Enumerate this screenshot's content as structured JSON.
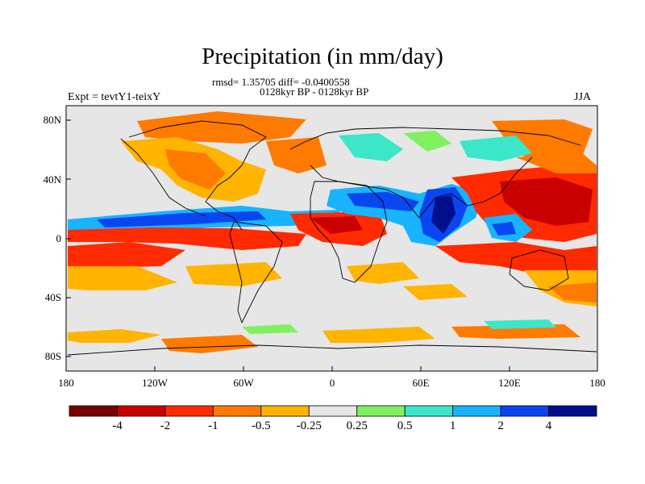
{
  "title": "Precipitation (in mm/day)",
  "stats": "rmsd= 1.35705 diff= -0.0400558",
  "period": "0128kyr BP - 0128kyr BP",
  "experiment": "Expt = tevtY1-teixY",
  "season": "JJA",
  "lat_labels": [
    "80N",
    "40N",
    "0",
    "40S",
    "80S"
  ],
  "lon_labels": [
    "180",
    "120W",
    "60W",
    "0",
    "60E",
    "120E",
    "180"
  ],
  "colorbar": {
    "colors": [
      "#7a0000",
      "#c80000",
      "#ff2a00",
      "#ff7a00",
      "#ffb400",
      "#e6e6e6",
      "#80f060",
      "#3ce6c8",
      "#18b4ff",
      "#0a46f0",
      "#00108c"
    ],
    "labels": [
      "-4",
      "-2",
      "-1",
      "-0.5",
      "-0.25",
      "0.25",
      "0.5",
      "1",
      "2",
      "4"
    ]
  },
  "map_colors": {
    "background": "#e6e6e6",
    "coast": "#000000"
  }
}
